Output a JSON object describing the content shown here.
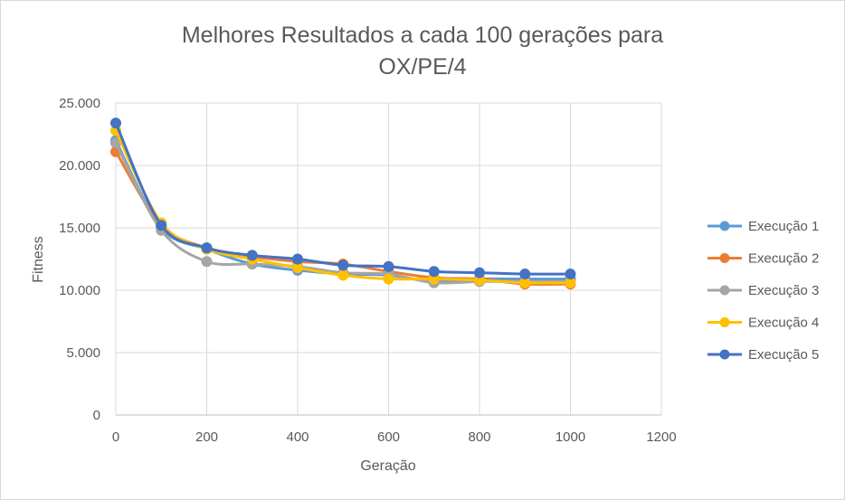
{
  "chart_data": {
    "type": "line",
    "title_lines": [
      "Melhores Resultados a cada 100 gerações para",
      "OX/PE/4"
    ],
    "xlabel": "Geração",
    "ylabel": "Fitness",
    "xlim": [
      0,
      1200
    ],
    "ylim": [
      0,
      25000
    ],
    "x_ticks": [
      0,
      200,
      400,
      600,
      800,
      1000,
      1200
    ],
    "x_tick_labels": [
      "0",
      "200",
      "400",
      "600",
      "800",
      "1000",
      "1200"
    ],
    "y_ticks": [
      0,
      5000,
      10000,
      15000,
      20000,
      25000
    ],
    "y_tick_labels": [
      "0",
      "5.000",
      "10.000",
      "15.000",
      "20.000",
      "25.000"
    ],
    "grid": true,
    "legend_position": "right",
    "x": [
      0,
      100,
      200,
      300,
      400,
      500,
      600,
      700,
      800,
      900,
      1000
    ],
    "series": [
      {
        "name": "Execução 1",
        "color": "#5b9bd5",
        "values": [
          22000,
          15000,
          13300,
          12100,
          11600,
          11300,
          11200,
          10700,
          10900,
          10900,
          10900
        ]
      },
      {
        "name": "Execução 2",
        "color": "#ed7d31",
        "values": [
          21100,
          15200,
          13400,
          12700,
          12300,
          12100,
          11500,
          11000,
          10900,
          10500,
          10500
        ]
      },
      {
        "name": "Execução 3",
        "color": "#a5a5a5",
        "values": [
          21800,
          14800,
          12300,
          12100,
          11900,
          11400,
          11300,
          10600,
          10700,
          10700,
          10700
        ]
      },
      {
        "name": "Execução 4",
        "color": "#ffc000",
        "values": [
          22800,
          15400,
          13300,
          12500,
          11800,
          11200,
          10900,
          10900,
          10800,
          10600,
          10600
        ]
      },
      {
        "name": "Execução 5",
        "color": "#4472c4",
        "values": [
          23400,
          15200,
          13400,
          12800,
          12500,
          12000,
          11900,
          11500,
          11400,
          11300,
          11300
        ]
      }
    ]
  }
}
